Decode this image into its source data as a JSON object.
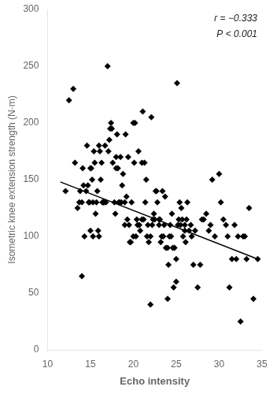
{
  "chart_data": {
    "type": "scatter",
    "xlabel": "Echo intensity",
    "ylabel": "Isometric knee extension strength (N·m)",
    "annotations": [
      "r = −0.333",
      "P < 0.001"
    ],
    "xlim": [
      10,
      35
    ],
    "ylim": [
      0,
      300
    ],
    "xticks": [
      10,
      15,
      20,
      25,
      30,
      35
    ],
    "yticks": [
      0,
      50,
      100,
      150,
      200,
      250,
      300
    ],
    "grid": false,
    "series": [
      {
        "type": "scatter",
        "marker": "diamond",
        "color": "black",
        "x": [
          12.1,
          12.5,
          13.0,
          13.2,
          13.5,
          13.7,
          13.8,
          14.0,
          14.0,
          14.1,
          14.2,
          14.3,
          14.5,
          14.6,
          14.7,
          14.8,
          14.9,
          15.0,
          15.0,
          15.1,
          15.2,
          15.3,
          15.3,
          15.4,
          15.5,
          15.6,
          15.7,
          15.8,
          15.9,
          16.0,
          16.0,
          16.1,
          16.2,
          16.3,
          16.4,
          16.5,
          16.6,
          16.7,
          16.8,
          17.0,
          17.1,
          17.2,
          17.3,
          17.4,
          17.5,
          17.6,
          17.8,
          17.9,
          18.0,
          18.0,
          18.1,
          18.2,
          18.3,
          18.4,
          18.5,
          18.6,
          18.7,
          18.8,
          19.0,
          19.0,
          19.1,
          19.2,
          19.3,
          19.4,
          19.5,
          19.6,
          19.7,
          19.8,
          20.0,
          20.0,
          20.1,
          20.2,
          20.3,
          20.4,
          20.5,
          20.6,
          20.7,
          20.8,
          21.0,
          21.0,
          21.1,
          21.2,
          21.3,
          21.4,
          21.5,
          21.6,
          21.7,
          21.8,
          22.0,
          22.0,
          22.1,
          22.2,
          22.3,
          22.4,
          22.5,
          22.6,
          22.7,
          22.8,
          23.0,
          23.0,
          23.1,
          23.2,
          23.3,
          23.4,
          23.5,
          23.6,
          23.7,
          23.8,
          24.0,
          24.0,
          24.1,
          24.2,
          24.3,
          24.4,
          24.5,
          24.6,
          24.7,
          24.8,
          25.0,
          25.0,
          25.1,
          25.2,
          25.3,
          25.4,
          25.5,
          25.6,
          25.7,
          25.8,
          26.0,
          26.0,
          26.1,
          26.2,
          26.3,
          26.5,
          26.7,
          26.8,
          27.0,
          27.2,
          27.5,
          27.8,
          28.0,
          28.2,
          28.5,
          28.8,
          29.0,
          29.2,
          29.5,
          30.0,
          30.2,
          30.5,
          30.8,
          31.0,
          31.2,
          31.5,
          31.8,
          32.0,
          32.2,
          32.5,
          32.8,
          33.0,
          33.2,
          33.5,
          34.0,
          34.5
        ],
        "values": [
          140,
          220,
          230,
          165,
          125,
          130,
          140,
          65,
          130,
          160,
          145,
          100,
          140,
          180,
          145,
          130,
          130,
          105,
          160,
          160,
          150,
          100,
          130,
          175,
          165,
          120,
          130,
          140,
          105,
          100,
          180,
          175,
          150,
          165,
          130,
          130,
          130,
          180,
          130,
          250,
          175,
          185,
          195,
          200,
          195,
          165,
          130,
          120,
          160,
          170,
          190,
          160,
          130,
          130,
          170,
          130,
          145,
          155,
          110,
          130,
          190,
          135,
          115,
          170,
          110,
          95,
          95,
          130,
          200,
          100,
          165,
          200,
          100,
          115,
          110,
          175,
          110,
          105,
          165,
          115,
          210,
          115,
          165,
          130,
          150,
          100,
          110,
          95,
          40,
          100,
          205,
          110,
          115,
          120,
          115,
          140,
          140,
          130,
          110,
          115,
          115,
          95,
          100,
          140,
          100,
          110,
          135,
          90,
          45,
          90,
          75,
          100,
          110,
          100,
          120,
          90,
          55,
          90,
          60,
          80,
          235,
          110,
          115,
          130,
          110,
          125,
          115,
          100,
          105,
          110,
          95,
          115,
          130,
          105,
          110,
          100,
          75,
          105,
          55,
          75,
          115,
          115,
          120,
          105,
          110,
          150,
          100,
          155,
          130,
          115,
          110,
          100,
          55,
          80,
          110,
          80,
          100,
          25,
          100,
          100,
          80,
          125,
          45,
          80
        ]
      },
      {
        "type": "line",
        "color": "black",
        "x": [
          11.5,
          34.5
        ],
        "values": [
          148,
          80
        ]
      }
    ]
  }
}
